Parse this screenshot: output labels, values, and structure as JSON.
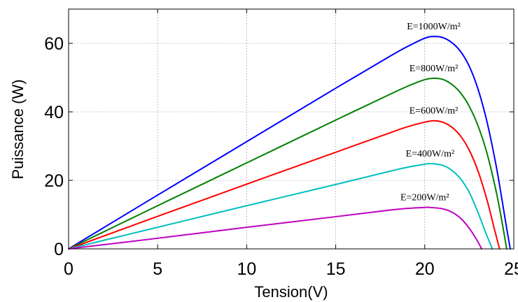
{
  "chart_data": {
    "type": "line",
    "title": "",
    "xlabel": "Tension(V)",
    "ylabel": "Puissance (W)",
    "xlim": [
      0,
      25
    ],
    "ylim": [
      0,
      70
    ],
    "xticks": [
      0,
      5,
      10,
      15,
      20,
      25
    ],
    "yticks": [
      0,
      20,
      40,
      60
    ],
    "grid": true,
    "legend": "none",
    "series": [
      {
        "name": "E=1000W/m²",
        "color": "#0000ff",
        "x": [
          0,
          5,
          10,
          15,
          18,
          19,
          20,
          20.5,
          21,
          21.5,
          22,
          22.5,
          23,
          23.5,
          24,
          24.3,
          24.6,
          24.8
        ],
        "y": [
          0,
          15.7,
          31.3,
          46.9,
          56.1,
          59.0,
          61.5,
          62.0,
          61.7,
          60.3,
          57.7,
          53.3,
          46.5,
          37.0,
          24.5,
          15.5,
          6.0,
          0
        ]
      },
      {
        "name": "E=800W/m²",
        "color": "#008000",
        "x": [
          0,
          5,
          10,
          15,
          18,
          19,
          20,
          20.5,
          21,
          21.5,
          22,
          22.5,
          23,
          23.5,
          24,
          24.3,
          24.6
        ],
        "y": [
          0,
          12.6,
          25.1,
          37.6,
          45.0,
          47.4,
          49.4,
          49.8,
          49.5,
          48.1,
          45.6,
          41.6,
          35.8,
          27.8,
          17.0,
          9.0,
          0
        ]
      },
      {
        "name": "E=600W/m²",
        "color": "#ff0000",
        "x": [
          0,
          5,
          10,
          15,
          18,
          19,
          20,
          20.5,
          21,
          21.5,
          22,
          22.5,
          23,
          23.5,
          23.9,
          24.2
        ],
        "y": [
          0,
          9.5,
          18.9,
          28.2,
          33.8,
          35.6,
          37.0,
          37.4,
          37.0,
          35.6,
          33.0,
          28.8,
          22.6,
          14.2,
          6.0,
          0
        ]
      },
      {
        "name": "E=400W/m²",
        "color": "#00bfbf",
        "x": [
          0,
          5,
          10,
          15,
          18,
          19,
          20,
          20.3,
          21,
          21.5,
          22,
          22.5,
          23,
          23.4,
          23.8
        ],
        "y": [
          0,
          6.3,
          12.6,
          18.8,
          22.6,
          23.8,
          24.7,
          24.9,
          24.4,
          23.0,
          20.5,
          16.5,
          10.5,
          5.0,
          0
        ]
      },
      {
        "name": "E=200W/m²",
        "color": "#bf00bf",
        "x": [
          0,
          5,
          10,
          15,
          18,
          19,
          20,
          20.3,
          21,
          21.5,
          22,
          22.5,
          22.9,
          23.2
        ],
        "y": [
          0,
          3.1,
          6.3,
          9.4,
          11.3,
          11.8,
          12.1,
          12.1,
          11.7,
          10.8,
          9.0,
          6.0,
          2.8,
          0
        ]
      }
    ],
    "annotations": [
      "E=1000W/m²",
      "E=800W/m²",
      "E=600W/m²",
      "E=400W/m²",
      "E=200W/m²"
    ]
  }
}
